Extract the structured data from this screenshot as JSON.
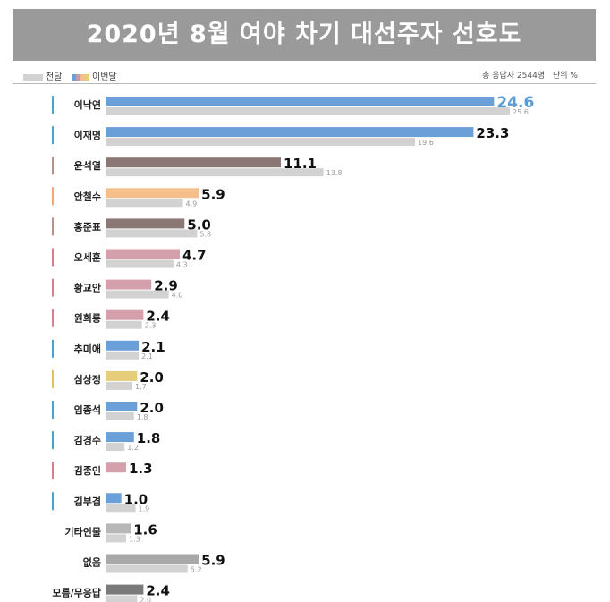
{
  "title": "2020년 8월 여야 차기 대선주자 선호도",
  "legend": {
    "prev_label": "전달",
    "cur_label": "이번달",
    "prev_color": "#d2d2d2",
    "cur_colors": [
      "#6a9fd8",
      "#c89aa6",
      "#f5bf8c",
      "#e5cd7a"
    ]
  },
  "meta": {
    "respondents": "총 응답자 2544명",
    "unit": "단위 %"
  },
  "chart_data": {
    "type": "bar",
    "orientation": "horizontal",
    "categories": [
      "이낙연",
      "이재명",
      "윤석열",
      "안철수",
      "홍준표",
      "오세훈",
      "황교안",
      "원희룡",
      "추미애",
      "심상정",
      "임종석",
      "김경수",
      "김종인",
      "김부겸",
      "기타인물",
      "없음",
      "모름/무응답"
    ],
    "series": [
      {
        "name": "이번달",
        "values": [
          24.6,
          23.3,
          11.1,
          5.9,
          5.0,
          4.7,
          2.9,
          2.4,
          2.1,
          2.0,
          2.0,
          1.8,
          1.3,
          1.0,
          1.6,
          5.9,
          2.4
        ]
      },
      {
        "name": "전달",
        "values": [
          25.6,
          19.6,
          13.8,
          4.9,
          5.8,
          4.3,
          4.0,
          2.3,
          2.1,
          1.7,
          1.8,
          1.2,
          null,
          1.9,
          1.3,
          5.2,
          2.0
        ]
      }
    ],
    "current_labels": [
      "24.6",
      "23.3",
      "11.1",
      "5.9",
      "5.0",
      "4.7",
      "2.9",
      "2.4",
      "2.1",
      "2.0",
      "2.0",
      "1.8",
      "1.3",
      "1.0",
      "1.6",
      "5.9",
      "2.4"
    ],
    "previous_labels": [
      "25.6",
      "19.6",
      "13.8",
      "4.9",
      "5.8",
      "4.3",
      "4.0",
      "2.3",
      "2.1",
      "1.7",
      "1.8",
      "1.2",
      "",
      "1.9",
      "1.3",
      "5.2",
      "2.0"
    ],
    "bar_colors": [
      "#6a9fd8",
      "#6a9fd8",
      "#8c7777",
      "#f5bf8c",
      "#8c7777",
      "#d4a0ac",
      "#d4a0ac",
      "#d4a0ac",
      "#6a9fd8",
      "#e5cd7a",
      "#6a9fd8",
      "#6a9fd8",
      "#d4a0ac",
      "#6a9fd8",
      "#b7b7b7",
      "#a8a8a8",
      "#7a7a7a"
    ],
    "marker_colors": [
      "#4aa3c9",
      "#4aa3c9",
      "#b89090",
      "#f0a878",
      "#b89090",
      "#d48090",
      "#d48090",
      "#d48090",
      "#4aa3c9",
      "#e0c060",
      "#4aa3c9",
      "#4aa3c9",
      "#d48090",
      "#4aa3c9",
      "",
      "",
      ""
    ],
    "highlight_label_color": "#5b9bd5",
    "prev_bar_color": "#d2d2d2",
    "xlim": [
      0,
      25.6
    ]
  }
}
